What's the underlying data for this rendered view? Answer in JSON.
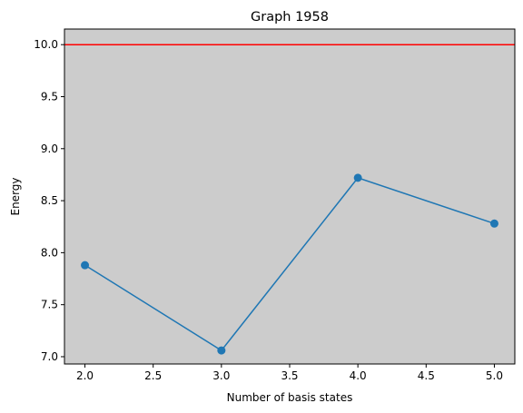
{
  "chart_data": {
    "type": "line",
    "title": "Graph 1958",
    "xlabel": "Number of basis states",
    "ylabel": "Energy",
    "x": [
      2.0,
      3.0,
      4.0,
      5.0
    ],
    "series": [
      {
        "values": [
          7.88,
          7.06,
          8.72,
          8.28
        ],
        "color": "#1f77b4",
        "marker": "circle"
      }
    ],
    "reference_line": {
      "y": 10.0,
      "color": "#ff0000"
    },
    "xlim": [
      1.85,
      5.15
    ],
    "ylim": [
      6.93,
      10.15
    ],
    "xticks": [
      "2.0",
      "2.5",
      "3.0",
      "3.5",
      "4.0",
      "4.5",
      "5.0"
    ],
    "yticks": [
      "7.0",
      "7.5",
      "8.0",
      "8.5",
      "9.0",
      "9.5",
      "10.0"
    ],
    "grid": false,
    "plot_background": "#cccccc"
  }
}
